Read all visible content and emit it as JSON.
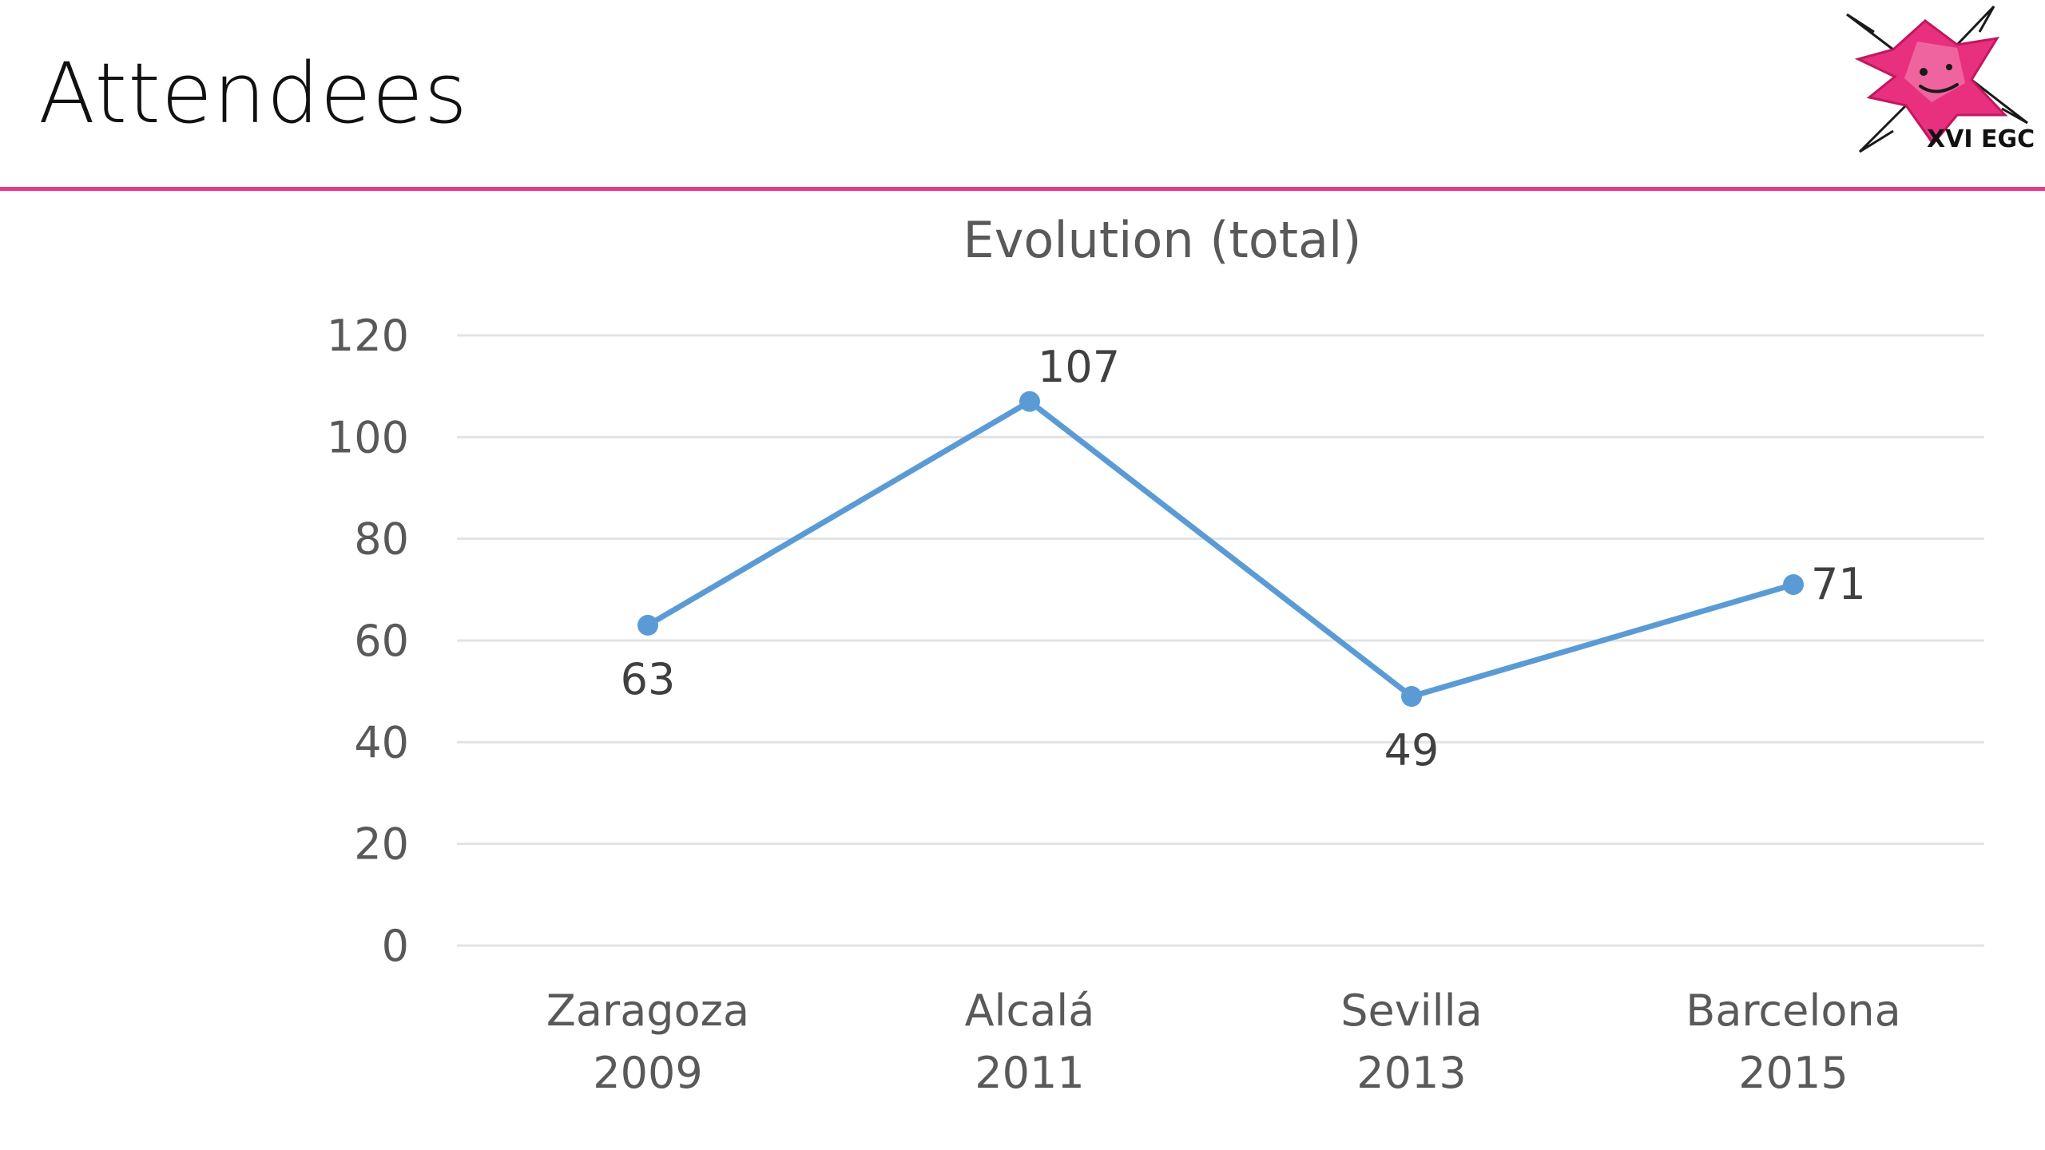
{
  "slide": {
    "title": "Attendees"
  },
  "logo": {
    "text": "XVI EGC",
    "color": "#e8307f"
  },
  "colors": {
    "accent_rule": "#e8398f",
    "series_line": "#5b9bd5",
    "gridline": "#e3e3e3",
    "axis_text": "#595959",
    "label_text": "#404040"
  },
  "chart_data": {
    "type": "line",
    "title": "Evolution (total)",
    "xlabel": "",
    "ylabel": "",
    "categories": [
      [
        "Zaragoza",
        "2009"
      ],
      [
        "Alcalá",
        "2011"
      ],
      [
        "Sevilla",
        "2013"
      ],
      [
        "Barcelona",
        "2015"
      ]
    ],
    "series": [
      {
        "values": [
          63,
          107,
          49,
          71
        ]
      }
    ],
    "data_labels": [
      "63",
      "107",
      "49",
      "71"
    ],
    "data_label_positions": [
      "below",
      "above-right",
      "below",
      "right"
    ],
    "ylim": [
      0,
      120
    ],
    "yticks": [
      0,
      20,
      40,
      60,
      80,
      100,
      120
    ],
    "grid": true,
    "legend": "none"
  }
}
